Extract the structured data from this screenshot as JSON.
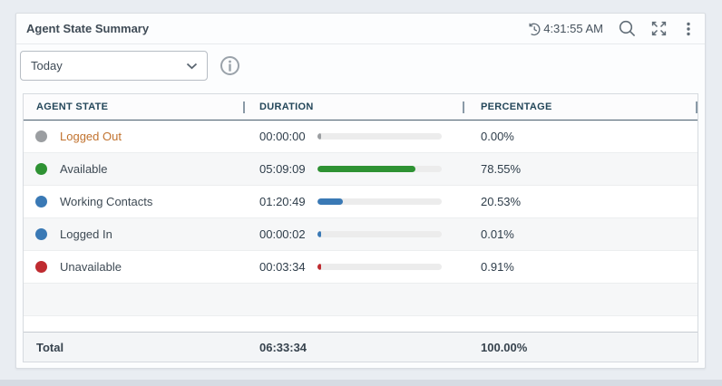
{
  "widget": {
    "title": "Agent State Summary",
    "time": "4:31:55 AM",
    "filter": {
      "selected": "Today"
    },
    "table": {
      "columns": [
        "AGENT STATE",
        "DURATION",
        "PERCENTAGE"
      ],
      "rows": [
        {
          "state": "Logged Out",
          "duration": "00:00:00",
          "percentage": "0.00%",
          "percent_value": 0.0,
          "color": "#9b9ea1",
          "label_color": "#c1722e"
        },
        {
          "state": "Available",
          "duration": "05:09:09",
          "percentage": "78.55%",
          "percent_value": 78.55,
          "color": "#2e9233",
          "label_color": "#3e4a54"
        },
        {
          "state": "Working Contacts",
          "duration": "01:20:49",
          "percentage": "20.53%",
          "percent_value": 20.53,
          "color": "#3a79b5",
          "label_color": "#3e4a54"
        },
        {
          "state": "Logged In",
          "duration": "00:00:02",
          "percentage": "0.01%",
          "percent_value": 0.01,
          "color": "#3a79b5",
          "label_color": "#3e4a54"
        },
        {
          "state": "Unavailable",
          "duration": "00:03:34",
          "percentage": "0.91%",
          "percent_value": 0.91,
          "color": "#bf2b30",
          "label_color": "#3e4a54"
        }
      ],
      "total": {
        "label": "Total",
        "duration": "06:33:34",
        "percentage": "100.00%"
      }
    },
    "icons": {
      "clock_history": "clock-history-icon",
      "search": "search-icon",
      "expand": "expand-icon",
      "kebab": "kebab-menu-icon",
      "info": "info-icon",
      "chevron": "chevron-down-icon"
    },
    "colors": {
      "header_text": "#24475a",
      "bar_track": "#ececec",
      "available_green": "#2e9233",
      "working_blue": "#3a79b5",
      "unavailable_red": "#bf2b30",
      "logged_out_gray": "#9b9ea1",
      "link_orange": "#c1722e"
    }
  }
}
